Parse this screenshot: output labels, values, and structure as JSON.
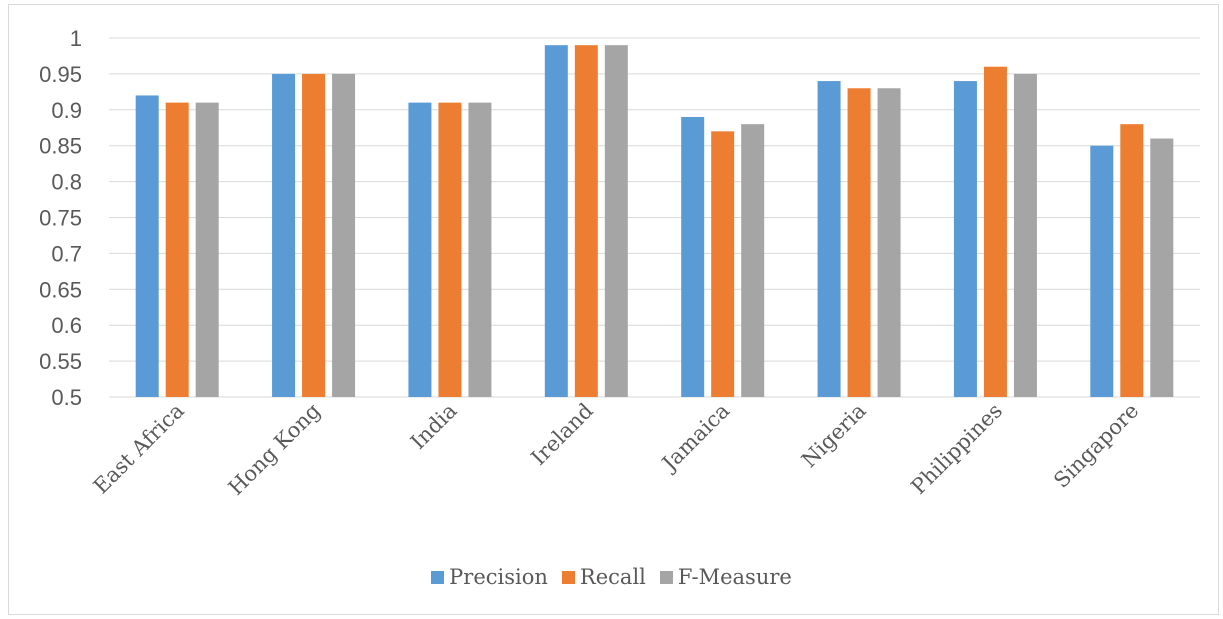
{
  "chart_data": {
    "type": "bar",
    "categories": [
      "East Africa",
      "Hong Kong",
      "India",
      "Ireland",
      "Jamaica",
      "Nigeria",
      "Philippines",
      "Singapore"
    ],
    "series": [
      {
        "name": "Precision",
        "color": "#5b9bd5",
        "values": [
          0.92,
          0.95,
          0.91,
          0.99,
          0.89,
          0.94,
          0.94,
          0.85
        ]
      },
      {
        "name": "Recall",
        "color": "#ed7d31",
        "values": [
          0.91,
          0.95,
          0.91,
          0.99,
          0.87,
          0.93,
          0.96,
          0.88
        ]
      },
      {
        "name": "F-Measure",
        "color": "#a5a5a5",
        "values": [
          0.91,
          0.95,
          0.91,
          0.99,
          0.88,
          0.93,
          0.95,
          0.86
        ]
      }
    ],
    "ylim": [
      0.5,
      1
    ],
    "yticks": [
      "0.5",
      "0.55",
      "0.6",
      "0.65",
      "0.7",
      "0.75",
      "0.8",
      "0.85",
      "0.9",
      "0.95",
      "1"
    ],
    "grid": true,
    "legend_position": "bottom"
  }
}
